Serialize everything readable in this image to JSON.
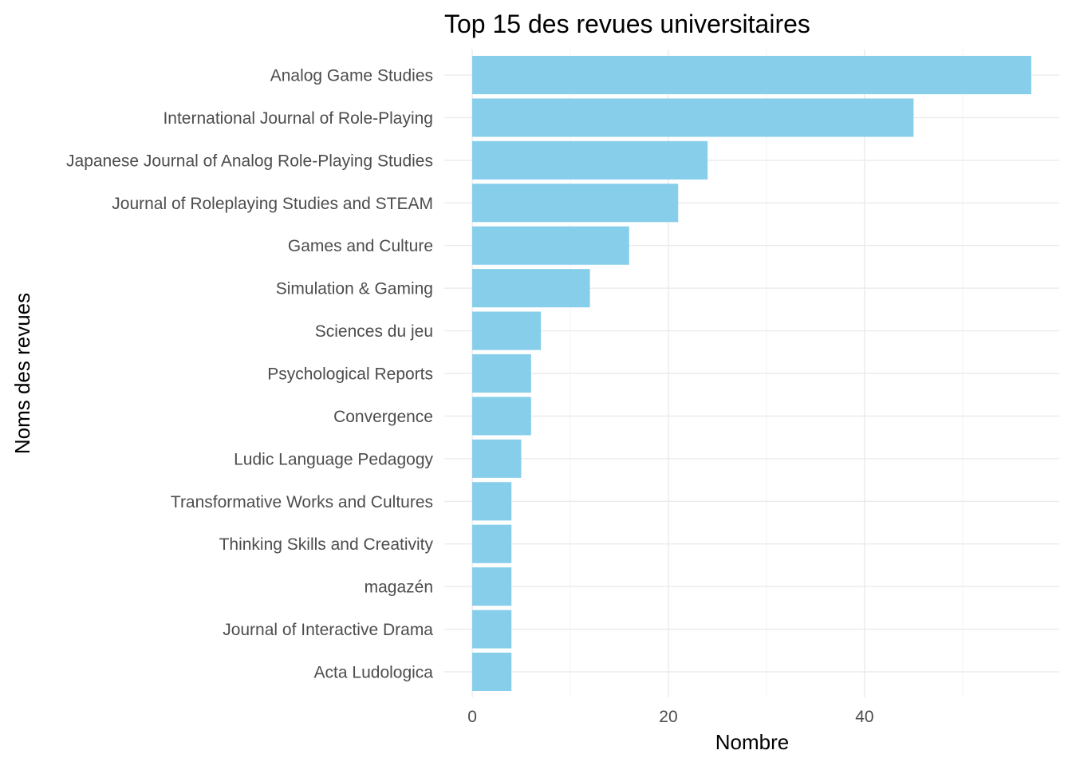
{
  "chart_data": {
    "type": "bar",
    "orientation": "horizontal",
    "title": "Top 15 des revues universitaires",
    "xlabel": "Nombre",
    "ylabel": "Noms des revues",
    "xlim": [
      -2.85,
      59.85
    ],
    "x_ticks": [
      0,
      20,
      40
    ],
    "bar_color": "#87CEEB",
    "grid": true,
    "legend": "none",
    "categories": [
      "Analog Game Studies",
      "International Journal of Role-Playing",
      "Japanese Journal of Analog Role-Playing Studies",
      "Journal of Roleplaying Studies and STEAM",
      "Games and Culture",
      "Simulation & Gaming",
      "Sciences du jeu",
      "Psychological Reports",
      "Convergence",
      "Ludic Language Pedagogy",
      "Transformative Works and Cultures",
      "Thinking Skills and Creativity",
      "magazén",
      "Journal of Interactive Drama",
      "Acta Ludologica"
    ],
    "values": [
      57,
      45,
      24,
      21,
      16,
      12,
      7,
      6,
      6,
      5,
      4,
      4,
      4,
      4,
      4
    ]
  }
}
